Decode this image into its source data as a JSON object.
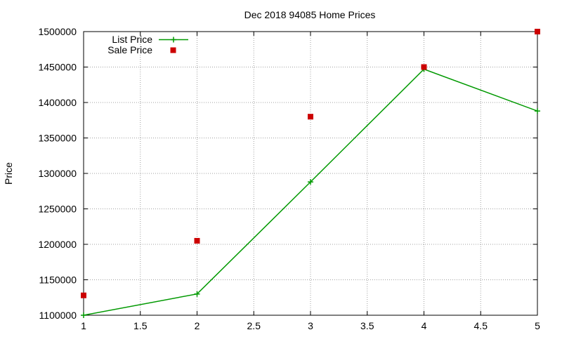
{
  "chart_data": {
    "type": "line",
    "title": "Dec 2018 94085 Home Prices",
    "xlabel": "",
    "ylabel": "Price",
    "xlim": [
      1,
      5
    ],
    "ylim": [
      1100000,
      1500000
    ],
    "grid": true,
    "legend_position": "top-left",
    "x_ticks": [
      "1",
      "1.5",
      "2",
      "2.5",
      "3",
      "3.5",
      "4",
      "4.5",
      "5"
    ],
    "y_ticks": [
      "1100000",
      "1150000",
      "1200000",
      "1250000",
      "1300000",
      "1350000",
      "1400000",
      "1450000",
      "1500000"
    ],
    "series": [
      {
        "name": "List Price",
        "style": "lines+points",
        "marker": "plus",
        "color": "#009900",
        "x": [
          1,
          2,
          3,
          4,
          5
        ],
        "values": [
          1100000,
          1130000,
          1288000,
          1447000,
          1388000
        ]
      },
      {
        "name": "Sale Price",
        "style": "points",
        "marker": "square",
        "color": "#cc0000",
        "x": [
          1,
          2,
          3,
          4,
          5
        ],
        "values": [
          1128000,
          1205000,
          1380000,
          1450000,
          1500000
        ]
      }
    ]
  }
}
